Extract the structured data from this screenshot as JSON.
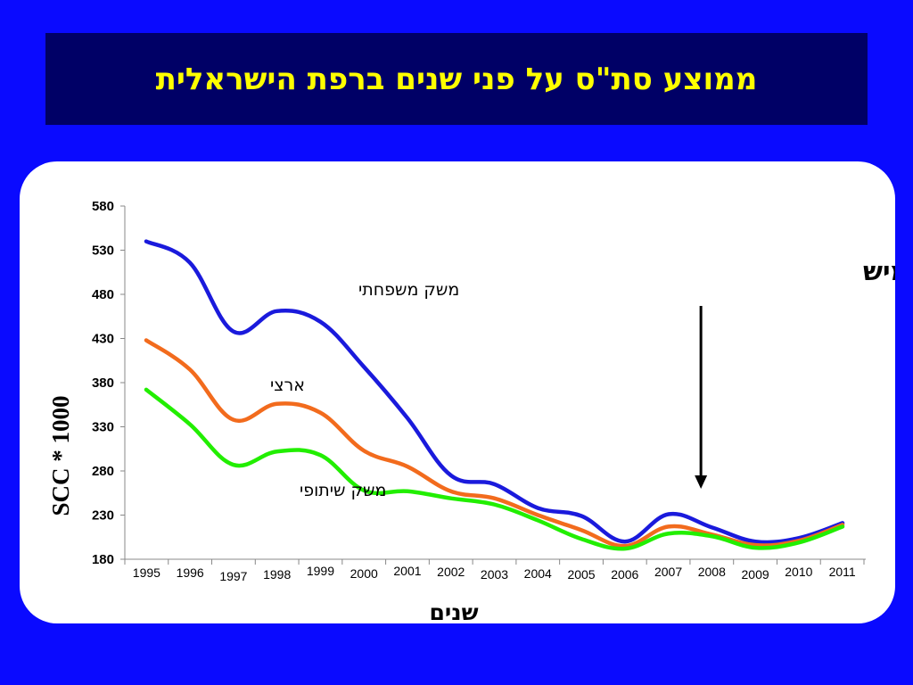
{
  "slide": {
    "title": "ממוצע סת\"ס על פני שנים ברפת הישראלית",
    "background_color": "#0a0aff",
    "title_bar_color": "#000066",
    "title_color": "#ffff00"
  },
  "chart_data": {
    "type": "line",
    "title": "",
    "xlabel": "שנים",
    "ylabel": "SCC * 1000",
    "categories": [
      "1995",
      "1996",
      "1997",
      "1998",
      "1999",
      "2000",
      "2001",
      "2002",
      "2003",
      "2004",
      "2005",
      "2006",
      "2007",
      "2008",
      "2009",
      "2010",
      "2011"
    ],
    "ylim": [
      180,
      580
    ],
    "yticks": [
      180,
      230,
      280,
      330,
      380,
      430,
      480,
      530,
      580
    ],
    "grid": false,
    "series": [
      {
        "name": "משק משפחתי",
        "color": "#1a1adc",
        "values": [
          540,
          516,
          438,
          461,
          449,
          398,
          340,
          275,
          265,
          238,
          229,
          200,
          231,
          216,
          200,
          204,
          221
        ]
      },
      {
        "name": "ארצי",
        "color": "#f26b1d",
        "values": [
          428,
          395,
          338,
          356,
          346,
          303,
          285,
          257,
          249,
          230,
          213,
          195,
          217,
          208,
          196,
          201,
          219
        ]
      },
      {
        "name": "משק שיתופי",
        "color": "#22ee00",
        "values": [
          372,
          333,
          287,
          302,
          298,
          258,
          257,
          249,
          242,
          224,
          203,
          192,
          209,
          206,
          193,
          199,
          217
        ]
      }
    ],
    "annotation": {
      "text": "החלת שיטת הפרס הגמיש",
      "category": "2008"
    }
  }
}
